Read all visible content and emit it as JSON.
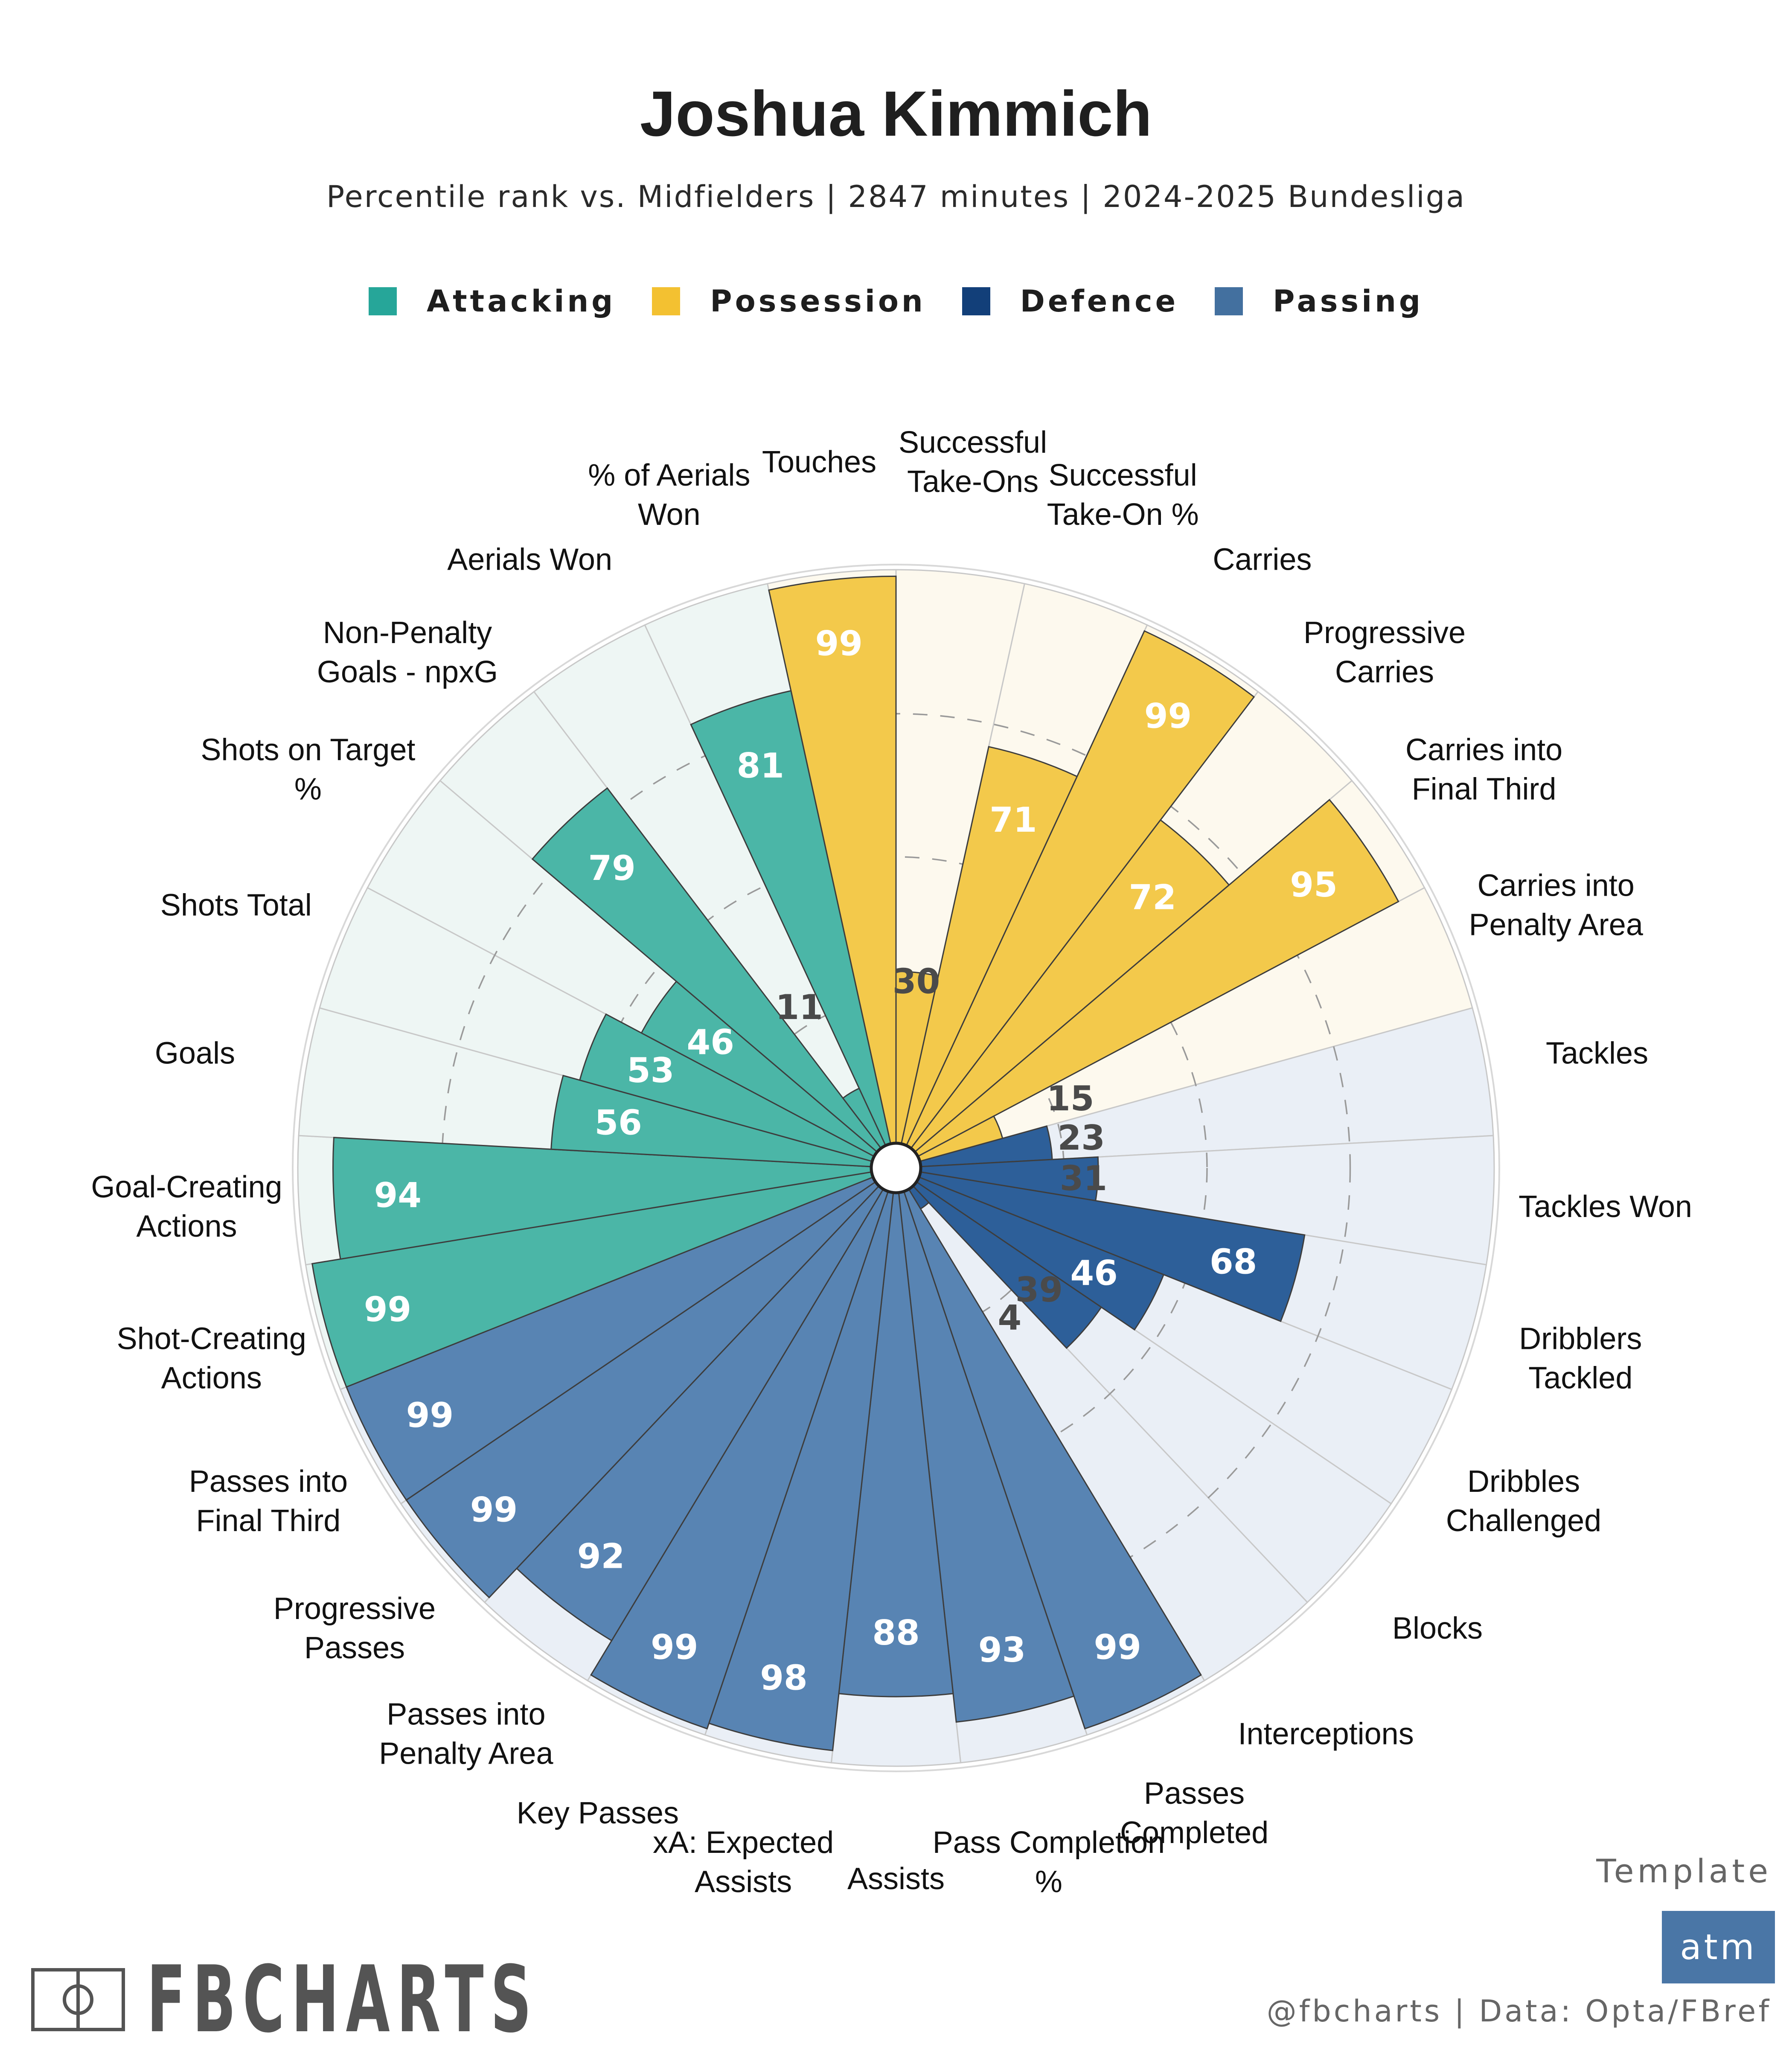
{
  "header": {
    "title": "Joshua Kimmich",
    "subtitle": "Percentile rank vs. Midfielders | 2847 minutes | 2024-2025 Bundesliga"
  },
  "colors": {
    "Attacking": {
      "fill": "#4bb6a7",
      "bg": "#eef6f4"
    },
    "Possession": {
      "fill": "#f3c94b",
      "bg": "#fdf9ee"
    },
    "Defence": {
      "fill": "#2d5f99",
      "bg": "#eaeff6"
    },
    "Passing": {
      "fill": "#5884b3",
      "bg": "#eaeff6"
    }
  },
  "legend": [
    {
      "label": "Attacking",
      "color": "#26a699"
    },
    {
      "label": "Possession",
      "color": "#f3c131"
    },
    {
      "label": "Defence",
      "color": "#123f79"
    },
    {
      "label": "Passing",
      "color": "#43709f"
    }
  ],
  "chart_data": {
    "type": "polar-bar",
    "title": "Joshua Kimmich",
    "subtitle": "Percentile rank vs. Midfielders | 2847 minutes | 2024-2025 Bundesliga",
    "rlim": [
      0,
      100
    ],
    "ring_values": [
      25,
      50,
      75
    ],
    "categories": [
      {
        "label": "Touches",
        "group": "Possession",
        "value": 99
      },
      {
        "label": "Successful Take-Ons",
        "group": "Possession",
        "value": 30
      },
      {
        "label": "Successful Take-On %",
        "group": "Possession",
        "value": 71
      },
      {
        "label": "Carries",
        "group": "Possession",
        "value": 99
      },
      {
        "label": "Progressive Carries",
        "group": "Possession",
        "value": 72
      },
      {
        "label": "Carries into Final Third",
        "group": "Possession",
        "value": 95
      },
      {
        "label": "Carries into Penalty Area",
        "group": "Possession",
        "value": 15
      },
      {
        "label": "Tackles",
        "group": "Defence",
        "value": 23
      },
      {
        "label": "Tackles Won",
        "group": "Defence",
        "value": 31
      },
      {
        "label": "Dribblers Tackled",
        "group": "Defence",
        "value": 68
      },
      {
        "label": "Dribbles Challenged",
        "group": "Defence",
        "value": 46
      },
      {
        "label": "Blocks",
        "group": "Defence",
        "value": 39
      },
      {
        "label": "Interceptions",
        "group": "Defence",
        "value": 4
      },
      {
        "label": "Passes Completed",
        "group": "Passing",
        "value": 99
      },
      {
        "label": "Pass Completion %",
        "group": "Passing",
        "value": 93
      },
      {
        "label": "Assists",
        "group": "Passing",
        "value": 88
      },
      {
        "label": "xA: Expected Assists",
        "group": "Passing",
        "value": 98
      },
      {
        "label": "Key Passes",
        "group": "Passing",
        "value": 99
      },
      {
        "label": "Passes into Penalty Area",
        "group": "Passing",
        "value": 92
      },
      {
        "label": "Progressive Passes",
        "group": "Passing",
        "value": 99
      },
      {
        "label": "Passes into Final Third",
        "group": "Passing",
        "value": 99
      },
      {
        "label": "Shot-Creating Actions",
        "group": "Attacking",
        "value": 99
      },
      {
        "label": "Goal-Creating Actions",
        "group": "Attacking",
        "value": 94
      },
      {
        "label": "Goals",
        "group": "Attacking",
        "value": 56
      },
      {
        "label": "Shots Total",
        "group": "Attacking",
        "value": 53
      },
      {
        "label": "Shots on Target %",
        "group": "Attacking",
        "value": 46
      },
      {
        "label": "Non-Penalty Goals - npxG",
        "group": "Attacking",
        "value": 79
      },
      {
        "label": "Aerials Won",
        "group": "Attacking",
        "value": 11
      },
      {
        "label": "% of Aerials Won",
        "group": "Attacking",
        "value": 81
      }
    ]
  },
  "footer": {
    "brand": "FBCHARTS",
    "template_label": "Template",
    "template_badge": "atm",
    "credit": "@fbcharts | Data: Opta/FBref"
  }
}
